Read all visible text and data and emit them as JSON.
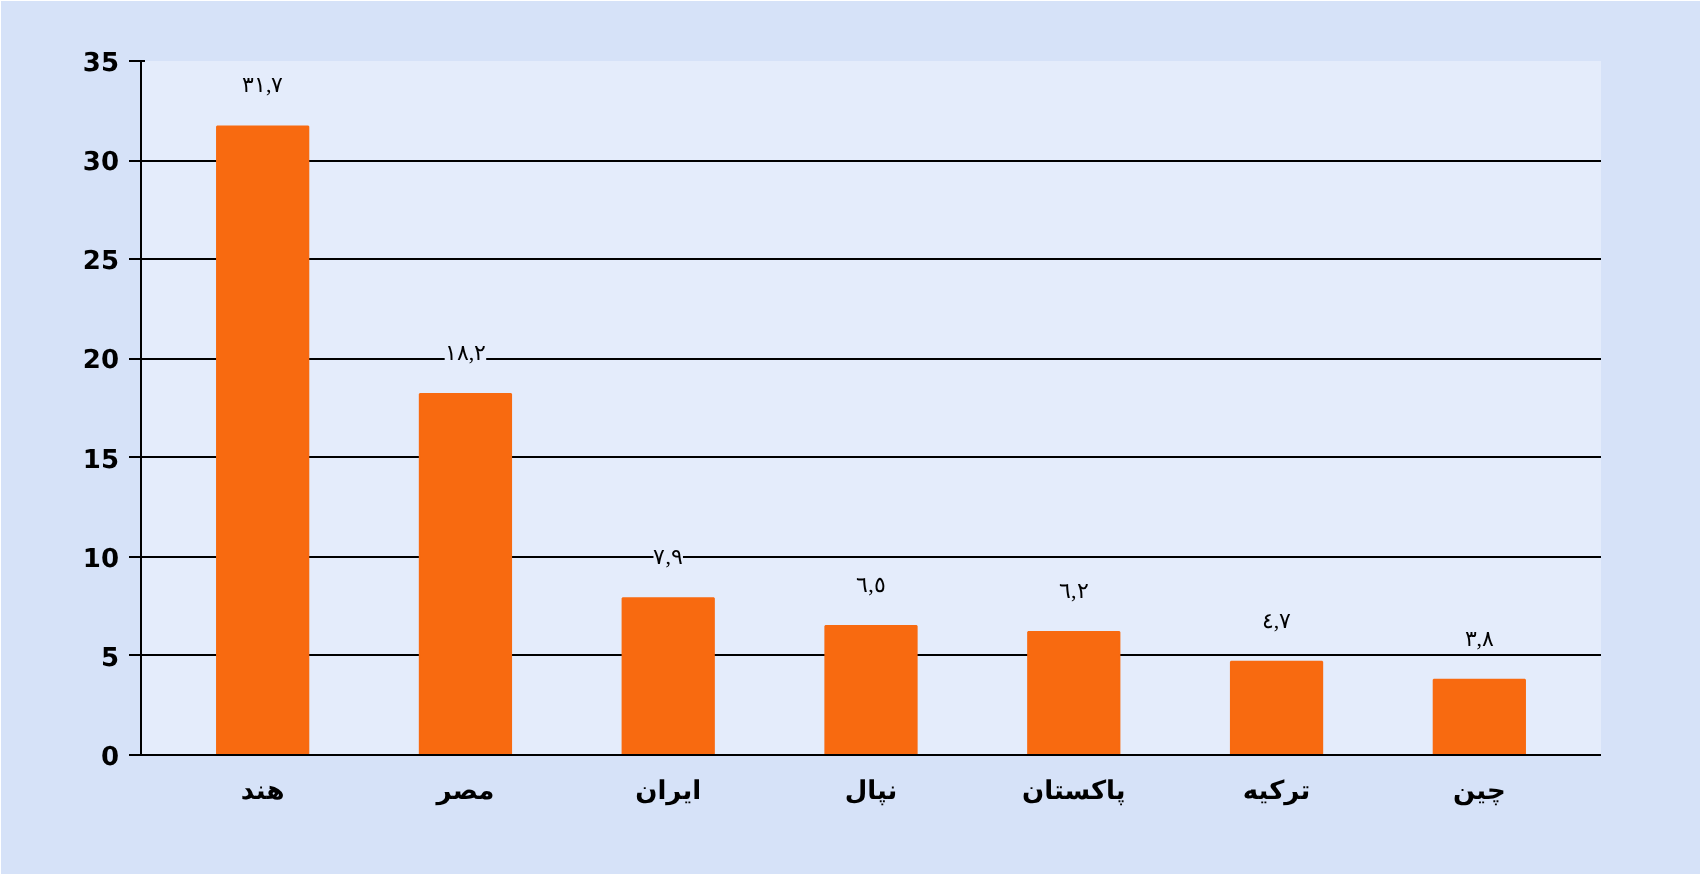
{
  "chart_data": {
    "type": "bar",
    "categories": [
      "هند",
      "مصر",
      "ایران",
      "نپال",
      "پاکستان",
      "ترکیه",
      "چین"
    ],
    "values": [
      31.7,
      18.2,
      7.9,
      6.5,
      6.2,
      4.7,
      3.8
    ],
    "value_labels": [
      "٣١,٧",
      "١٨,٢",
      "٧,٩",
      "٦,٥",
      "٦,٢",
      "٤,٧",
      "٣,٨"
    ],
    "color": "#f86a10",
    "ylim": [
      0,
      35
    ],
    "yticks": [
      0,
      5,
      10,
      15,
      20,
      25,
      30,
      35
    ],
    "grid": "y"
  }
}
